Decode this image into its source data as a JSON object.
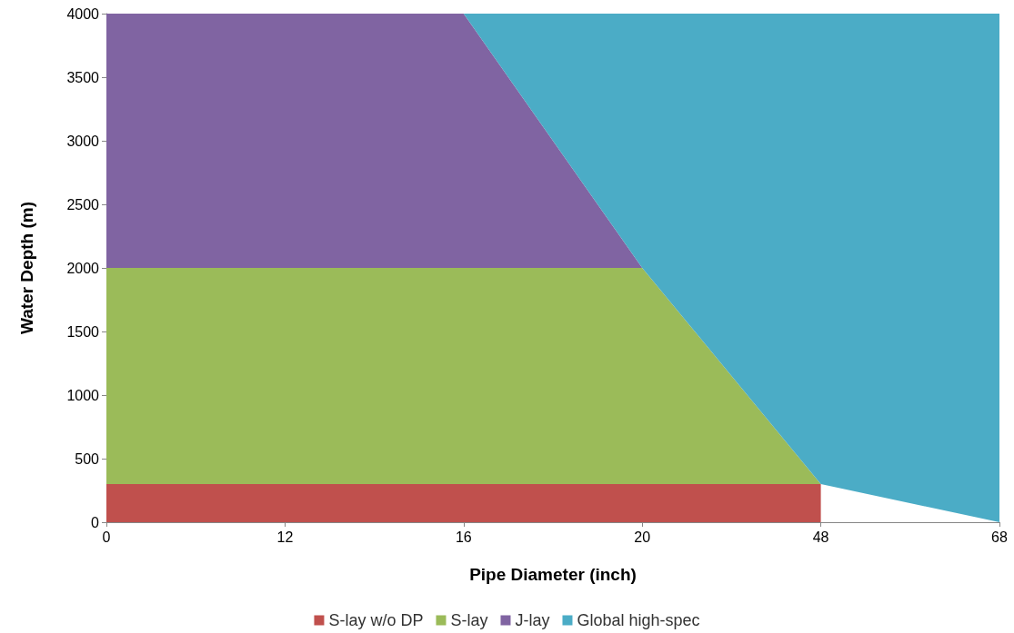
{
  "chart_data": {
    "type": "area",
    "stacked": true,
    "xlabel": "Pipe Diameter (inch)",
    "ylabel": "Water Depth (m)",
    "categories": [
      "0",
      "12",
      "16",
      "20",
      "48",
      "68"
    ],
    "series": [
      {
        "name": "S-lay w/o DP",
        "color": "#c0504d",
        "values": [
          300,
          300,
          300,
          300,
          300,
          null
        ]
      },
      {
        "name": "S-lay",
        "color": "#9bbb59",
        "values": [
          1700,
          1700,
          1700,
          1700,
          0,
          null
        ]
      },
      {
        "name": "J-lay",
        "color": "#8064a2",
        "values": [
          2000,
          2000,
          2000,
          0,
          null,
          null
        ]
      },
      {
        "name": "Global high-spec",
        "color": "#4bacc6",
        "values": [
          0,
          0,
          0,
          2000,
          3700,
          4000
        ]
      }
    ],
    "ylim": [
      0,
      4000
    ],
    "yticks": [
      0,
      500,
      1000,
      1500,
      2000,
      2500,
      3000,
      3500,
      4000
    ],
    "grid": false,
    "legend": "bottom"
  }
}
